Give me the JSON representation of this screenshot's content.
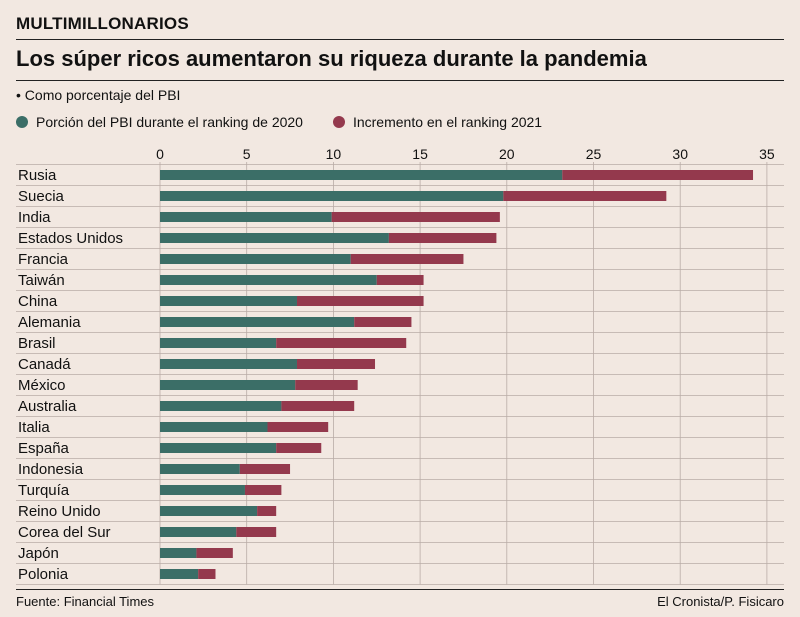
{
  "header": {
    "kicker": "MULTIMILLONARIOS",
    "title": "Los súper ricos aumentaron su riqueza durante la pandemia",
    "subtitle": "• Como porcentaje del PBI"
  },
  "footer": {
    "source": "Fuente: Financial Times",
    "credit": "El Cronista/P. Fisicaro"
  },
  "colors": {
    "series_2020": "#3b6e67",
    "series_2021": "#94394d",
    "gridline": "#b9aca6",
    "background": "#f2e8e1"
  },
  "chart_data": {
    "type": "bar",
    "orientation": "horizontal",
    "stacked": true,
    "categories": [
      "Rusia",
      "Suecia",
      "India",
      "Estados Unidos",
      "Francia",
      "Taiwán",
      "China",
      "Alemania",
      "Brasil",
      "Canadá",
      "México",
      "Australia",
      "Italia",
      "España",
      "Indonesia",
      "Turquía",
      "Reino Unido",
      "Corea del Sur",
      "Japón",
      "Polonia"
    ],
    "series": [
      {
        "name": "Porción del PBI durante el ranking de 2020",
        "color": "#3b6e67",
        "values": [
          23.2,
          19.8,
          9.9,
          13.2,
          11.0,
          12.5,
          7.9,
          11.2,
          6.7,
          7.9,
          7.8,
          7.0,
          6.2,
          6.7,
          4.6,
          4.9,
          5.6,
          4.4,
          2.1,
          2.2
        ]
      },
      {
        "name": "Incremento en el ranking 2021",
        "color": "#94394d",
        "values": [
          11.0,
          9.4,
          9.7,
          6.2,
          6.5,
          2.7,
          7.3,
          3.3,
          7.5,
          4.5,
          3.6,
          4.2,
          3.5,
          2.6,
          2.9,
          2.1,
          1.1,
          2.3,
          2.1,
          1.0
        ]
      }
    ],
    "xticks": [
      0,
      5,
      10,
      15,
      20,
      25,
      30,
      35
    ],
    "xlim": [
      0,
      36
    ],
    "grid": true,
    "legend": "top-left"
  }
}
